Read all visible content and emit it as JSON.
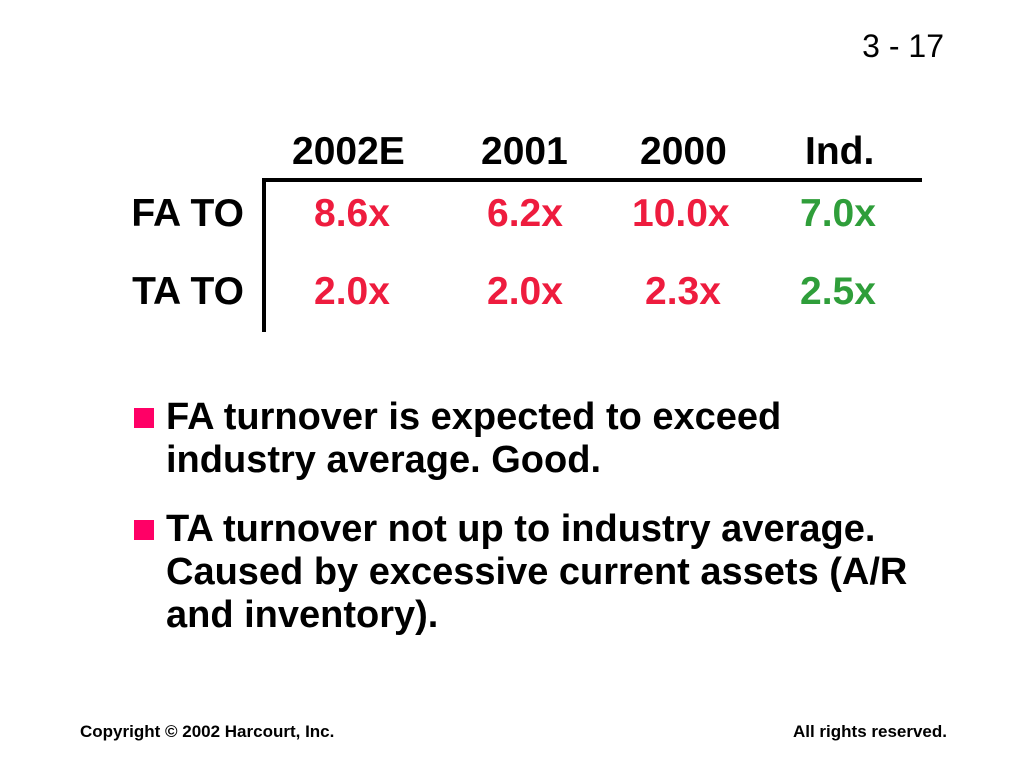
{
  "slide_number": "3 - 17",
  "table": {
    "headers": [
      "2002E",
      "2001",
      "2000",
      "Ind."
    ],
    "rows": [
      {
        "label": "FA TO",
        "values": [
          "8.6x",
          "6.2x",
          "10.0x",
          "7.0x"
        ]
      },
      {
        "label": "TA TO",
        "values": [
          "2.0x",
          "2.0x",
          "2.3x",
          "2.5x"
        ]
      }
    ]
  },
  "colors": {
    "company_value": "#ee1c3e",
    "industry_value": "#2f9e3a",
    "bullet_marker": "#ff0066",
    "text": "#000000"
  },
  "bullets": [
    "FA turnover is expected to exceed industry average.  Good.",
    "TA turnover not up to industry average.  Caused by excessive current assets (A/R and inventory)."
  ],
  "footer": {
    "copyright": "Copyright © 2002 Harcourt, Inc.",
    "rights": "All rights reserved."
  }
}
